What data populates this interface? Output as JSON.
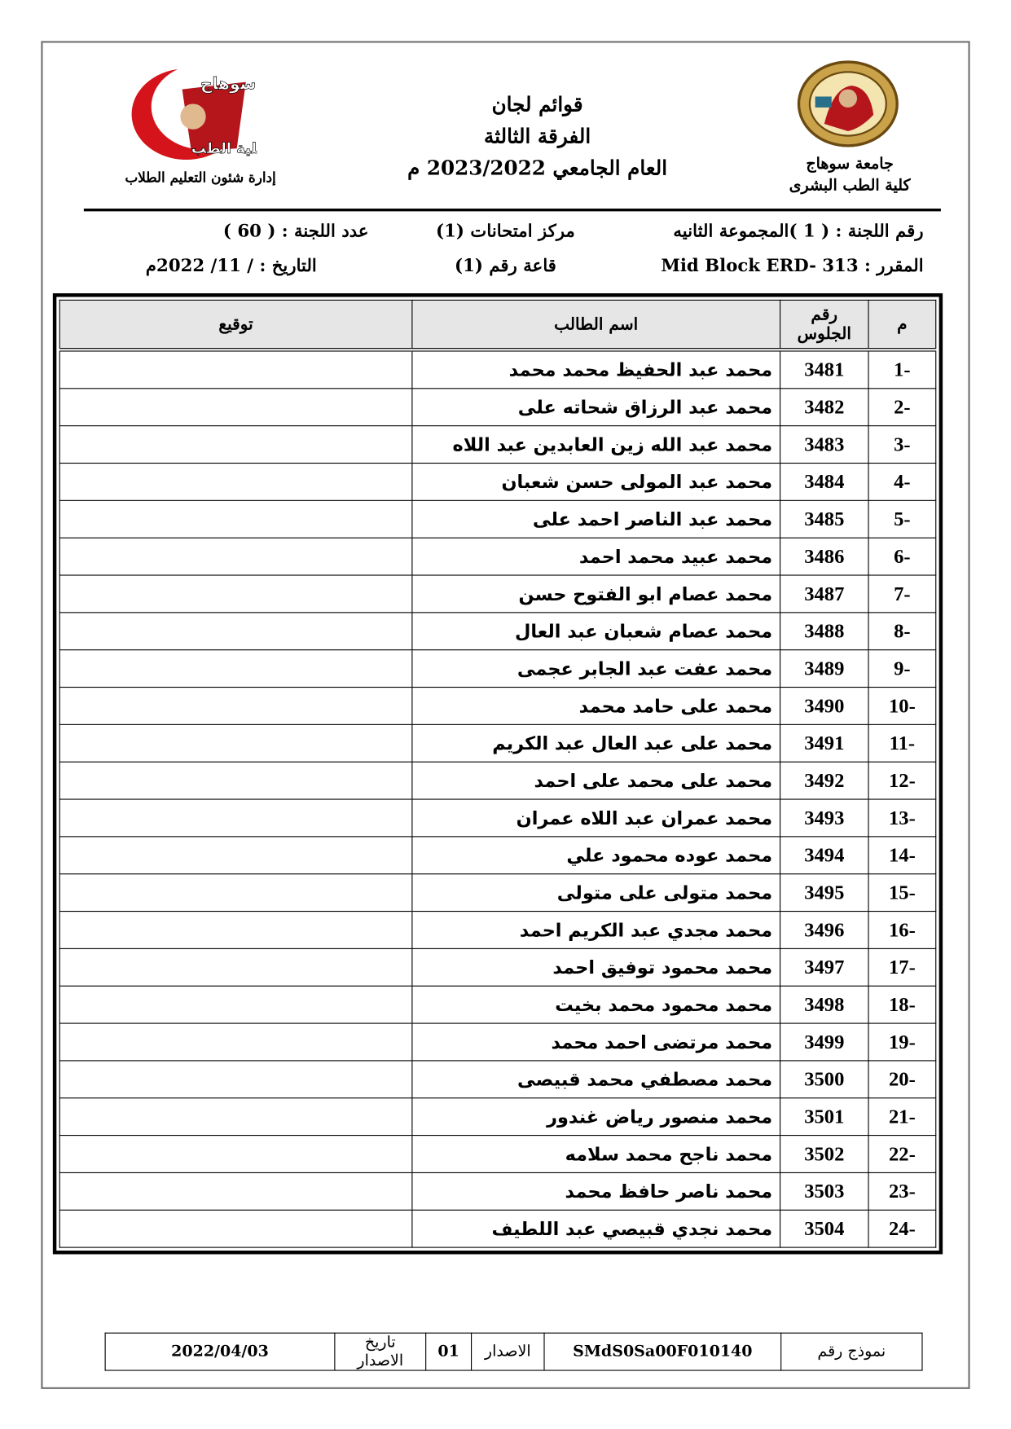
{
  "header": {
    "university": "جامعة سوهاج",
    "faculty": "كلية الطب البشرى",
    "title": "قوائم لجان",
    "year_level": "الفرقة الثالثة",
    "academic_year": "العام الجامعي 2023/2022 م",
    "department": "إدارة شئون التعليم الطلاب"
  },
  "info": {
    "committee": "رقم اللجنة : ( 1 )المجموعة الثانيه",
    "center": "مركز امتحانات (1)",
    "count": "عدد اللجنة : ( 60 )",
    "course": "المقرر : Mid Block ERD- 313",
    "hall": "قاعة رقم (1)",
    "date": "التاريخ :    / 11/ 2022م"
  },
  "table": {
    "columns": [
      "م",
      "رقم الجلوس",
      "اسم الطالب",
      "توقيع"
    ],
    "rows": [
      [
        "-1",
        3481,
        "محمد عبد الحفيظ محمد محمد"
      ],
      [
        "-2",
        3482,
        "محمد عبد الرزاق شحاته على"
      ],
      [
        "-3",
        3483,
        "محمد عبد الله زين العابدين عبد اللاه"
      ],
      [
        "-4",
        3484,
        "محمد عبد المولى حسن شعبان"
      ],
      [
        "-5",
        3485,
        "محمد عبد الناصر احمد على"
      ],
      [
        "-6",
        3486,
        "محمد عبيد محمد احمد"
      ],
      [
        "-7",
        3487,
        "محمد عصام ابو الفتوح حسن"
      ],
      [
        "-8",
        3488,
        "محمد عصام شعبان عبد العال"
      ],
      [
        "-9",
        3489,
        "محمد عفت عبد الجابر عجمى"
      ],
      [
        "-10",
        3490,
        "محمد على حامد محمد"
      ],
      [
        "-11",
        3491,
        "محمد على عبد العال عبد الكريم"
      ],
      [
        "-12",
        3492,
        "محمد على محمد على احمد"
      ],
      [
        "-13",
        3493,
        "محمد عمران عبد اللاه عمران"
      ],
      [
        "-14",
        3494,
        "محمد عوده محمود علي"
      ],
      [
        "-15",
        3495,
        "محمد متولى على متولى"
      ],
      [
        "-16",
        3496,
        "محمد مجدي عبد الكريم احمد"
      ],
      [
        "-17",
        3497,
        "محمد محمود توفيق احمد"
      ],
      [
        "-18",
        3498,
        "محمد محمود محمد بخيت"
      ],
      [
        "-19",
        3499,
        "محمد مرتضى احمد محمد"
      ],
      [
        "-20",
        3500,
        "محمد مصطفي محمد قبيصى"
      ],
      [
        "-21",
        3501,
        "محمد منصور رياض غندور"
      ],
      [
        "-22",
        3502,
        "محمد ناجح محمد سلامه"
      ],
      [
        "-23",
        3503,
        "محمد ناصر حافظ محمد"
      ],
      [
        "-24",
        3504,
        "محمد نجدي قبيصي عبد اللطيف"
      ]
    ]
  },
  "footer": {
    "form_label": "نموذج رقم",
    "form_number": "SMdS0Sa00F010140",
    "issue_label": "الاصدار",
    "issue": "01",
    "issue_date_label": "تاريخ الاصدار",
    "issue_date": "2022/04/03"
  }
}
